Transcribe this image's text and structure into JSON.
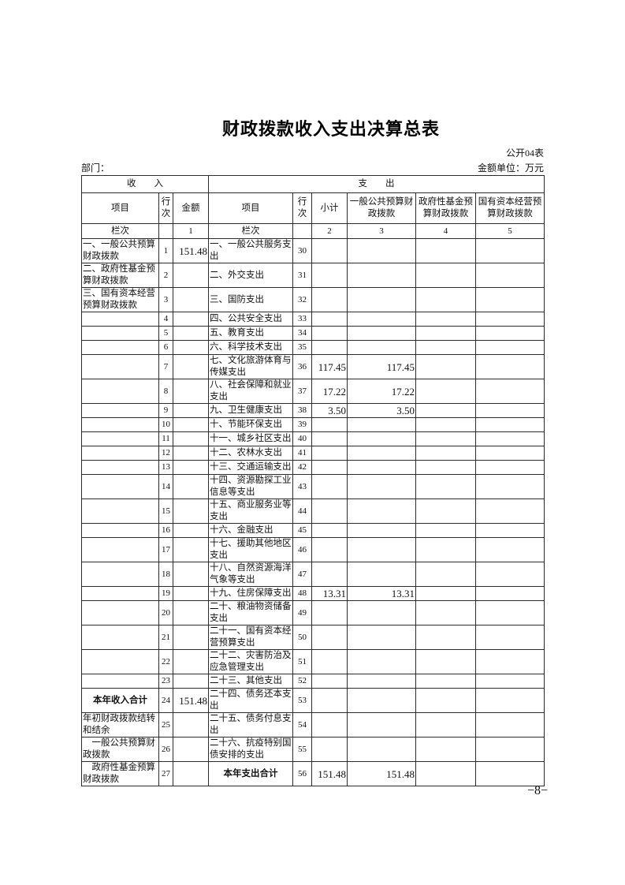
{
  "page": {
    "title": "财政拨款收入支出决算总表",
    "form_no": "公开04表",
    "department_label": "部门：",
    "unit_label": "金额单位：万元",
    "page_number": "−8−"
  },
  "table": {
    "section_income": "收　　入",
    "section_expenditure": "支　　出",
    "col_item_income": "项目",
    "col_rowno_income": "行次",
    "col_amount": "金额",
    "col_item_exp": "项目",
    "col_rowno_exp": "行次",
    "col_subtotal": "小计",
    "col_general_budget": "一般公共预算财政拨款",
    "col_gov_fund": "政府性基金预算财政拨款",
    "col_state_capital": "国有资本经营预算财政拨款",
    "index_label_income": "栏次",
    "index_label_exp": "栏次",
    "index_amount": "1",
    "index_subtotal": "2",
    "index_general": "3",
    "index_fund": "4",
    "index_capital": "5",
    "rows": [
      {
        "in_item": "一、一般公共预算财政拨款",
        "in_no": "1",
        "in_amt": "151.48",
        "ex_item": "一、一般公共服务支出",
        "ex_no": "30",
        "ex_sub": "",
        "ex_gen": "",
        "ex_fund": "",
        "ex_cap": ""
      },
      {
        "in_item": "二、政府性基金预算财政拨款",
        "in_no": "2",
        "in_amt": "",
        "ex_item": "二、外交支出",
        "ex_no": "31",
        "ex_sub": "",
        "ex_gen": "",
        "ex_fund": "",
        "ex_cap": ""
      },
      {
        "in_item": "三、国有资本经营预算财政拨款",
        "in_no": "3",
        "in_amt": "",
        "ex_item": "三、国防支出",
        "ex_no": "32",
        "ex_sub": "",
        "ex_gen": "",
        "ex_fund": "",
        "ex_cap": ""
      },
      {
        "in_item": "",
        "in_no": "4",
        "in_amt": "",
        "ex_item": "四、公共安全支出",
        "ex_no": "33",
        "ex_sub": "",
        "ex_gen": "",
        "ex_fund": "",
        "ex_cap": ""
      },
      {
        "in_item": "",
        "in_no": "5",
        "in_amt": "",
        "ex_item": "五、教育支出",
        "ex_no": "34",
        "ex_sub": "",
        "ex_gen": "",
        "ex_fund": "",
        "ex_cap": ""
      },
      {
        "in_item": "",
        "in_no": "6",
        "in_amt": "",
        "ex_item": "六、科学技术支出",
        "ex_no": "35",
        "ex_sub": "",
        "ex_gen": "",
        "ex_fund": "",
        "ex_cap": ""
      },
      {
        "in_item": "",
        "in_no": "7",
        "in_amt": "",
        "ex_item": "七、文化旅游体育与传媒支出",
        "ex_no": "36",
        "ex_sub": "117.45",
        "ex_gen": "117.45",
        "ex_fund": "",
        "ex_cap": ""
      },
      {
        "in_item": "",
        "in_no": "8",
        "in_amt": "",
        "ex_item": "八、社会保障和就业支出",
        "ex_no": "37",
        "ex_sub": "17.22",
        "ex_gen": "17.22",
        "ex_fund": "",
        "ex_cap": ""
      },
      {
        "in_item": "",
        "in_no": "9",
        "in_amt": "",
        "ex_item": "九、卫生健康支出",
        "ex_no": "38",
        "ex_sub": "3.50",
        "ex_gen": "3.50",
        "ex_fund": "",
        "ex_cap": ""
      },
      {
        "in_item": "",
        "in_no": "10",
        "in_amt": "",
        "ex_item": "十、节能环保支出",
        "ex_no": "39",
        "ex_sub": "",
        "ex_gen": "",
        "ex_fund": "",
        "ex_cap": ""
      },
      {
        "in_item": "",
        "in_no": "11",
        "in_amt": "",
        "ex_item": "十一、城乡社区支出",
        "ex_no": "40",
        "ex_sub": "",
        "ex_gen": "",
        "ex_fund": "",
        "ex_cap": ""
      },
      {
        "in_item": "",
        "in_no": "12",
        "in_amt": "",
        "ex_item": "十二、农林水支出",
        "ex_no": "41",
        "ex_sub": "",
        "ex_gen": "",
        "ex_fund": "",
        "ex_cap": ""
      },
      {
        "in_item": "",
        "in_no": "13",
        "in_amt": "",
        "ex_item": "十三、交通运输支出",
        "ex_no": "42",
        "ex_sub": "",
        "ex_gen": "",
        "ex_fund": "",
        "ex_cap": ""
      },
      {
        "in_item": "",
        "in_no": "14",
        "in_amt": "",
        "ex_item": "十四、资源勘探工业信息等支出",
        "ex_no": "43",
        "ex_sub": "",
        "ex_gen": "",
        "ex_fund": "",
        "ex_cap": ""
      },
      {
        "in_item": "",
        "in_no": "15",
        "in_amt": "",
        "ex_item": "十五、商业服务业等支出",
        "ex_no": "44",
        "ex_sub": "",
        "ex_gen": "",
        "ex_fund": "",
        "ex_cap": ""
      },
      {
        "in_item": "",
        "in_no": "16",
        "in_amt": "",
        "ex_item": "十六、金融支出",
        "ex_no": "45",
        "ex_sub": "",
        "ex_gen": "",
        "ex_fund": "",
        "ex_cap": ""
      },
      {
        "in_item": "",
        "in_no": "17",
        "in_amt": "",
        "ex_item": "十七、援助其他地区支出",
        "ex_no": "46",
        "ex_sub": "",
        "ex_gen": "",
        "ex_fund": "",
        "ex_cap": ""
      },
      {
        "in_item": "",
        "in_no": "18",
        "in_amt": "",
        "ex_item": "十八、自然资源海洋气象等支出",
        "ex_no": "47",
        "ex_sub": "",
        "ex_gen": "",
        "ex_fund": "",
        "ex_cap": ""
      },
      {
        "in_item": "",
        "in_no": "19",
        "in_amt": "",
        "ex_item": "十九、住房保障支出",
        "ex_no": "48",
        "ex_sub": "13.31",
        "ex_gen": "13.31",
        "ex_fund": "",
        "ex_cap": ""
      },
      {
        "in_item": "",
        "in_no": "20",
        "in_amt": "",
        "ex_item": "二十、粮油物资储备支出",
        "ex_no": "49",
        "ex_sub": "",
        "ex_gen": "",
        "ex_fund": "",
        "ex_cap": ""
      },
      {
        "in_item": "",
        "in_no": "21",
        "in_amt": "",
        "ex_item": "二十一、国有资本经营预算支出",
        "ex_no": "50",
        "ex_sub": "",
        "ex_gen": "",
        "ex_fund": "",
        "ex_cap": ""
      },
      {
        "in_item": "",
        "in_no": "22",
        "in_amt": "",
        "ex_item": "二十二、灾害防治及应急管理支出",
        "ex_no": "51",
        "ex_sub": "",
        "ex_gen": "",
        "ex_fund": "",
        "ex_cap": ""
      },
      {
        "in_item": "",
        "in_no": "23",
        "in_amt": "",
        "ex_item": "二十三、其他支出",
        "ex_no": "52",
        "ex_sub": "",
        "ex_gen": "",
        "ex_fund": "",
        "ex_cap": ""
      },
      {
        "in_item": "本年收入合计",
        "in_bold": true,
        "in_no": "24",
        "in_amt": "151.48",
        "ex_item": "二十四、债务还本支出",
        "ex_no": "53",
        "ex_sub": "",
        "ex_gen": "",
        "ex_fund": "",
        "ex_cap": ""
      },
      {
        "in_item": "年初财政拨款结转和结余",
        "in_no": "25",
        "in_amt": "",
        "ex_item": "二十五、债务付息支出",
        "ex_no": "54",
        "ex_sub": "",
        "ex_gen": "",
        "ex_fund": "",
        "ex_cap": ""
      },
      {
        "in_item": "　一般公共预算财政拨款",
        "in_no": "26",
        "in_amt": "",
        "ex_item": "二十六、抗疫特别国债安排的支出",
        "ex_no": "55",
        "ex_sub": "",
        "ex_gen": "",
        "ex_fund": "",
        "ex_cap": ""
      },
      {
        "in_item": "　政府性基金预算财政拨款",
        "in_no": "27",
        "in_amt": "",
        "ex_item": "本年支出合计",
        "ex_bold": true,
        "ex_no": "56",
        "ex_sub": "151.48",
        "ex_gen": "151.48",
        "ex_fund": "",
        "ex_cap": ""
      }
    ]
  }
}
